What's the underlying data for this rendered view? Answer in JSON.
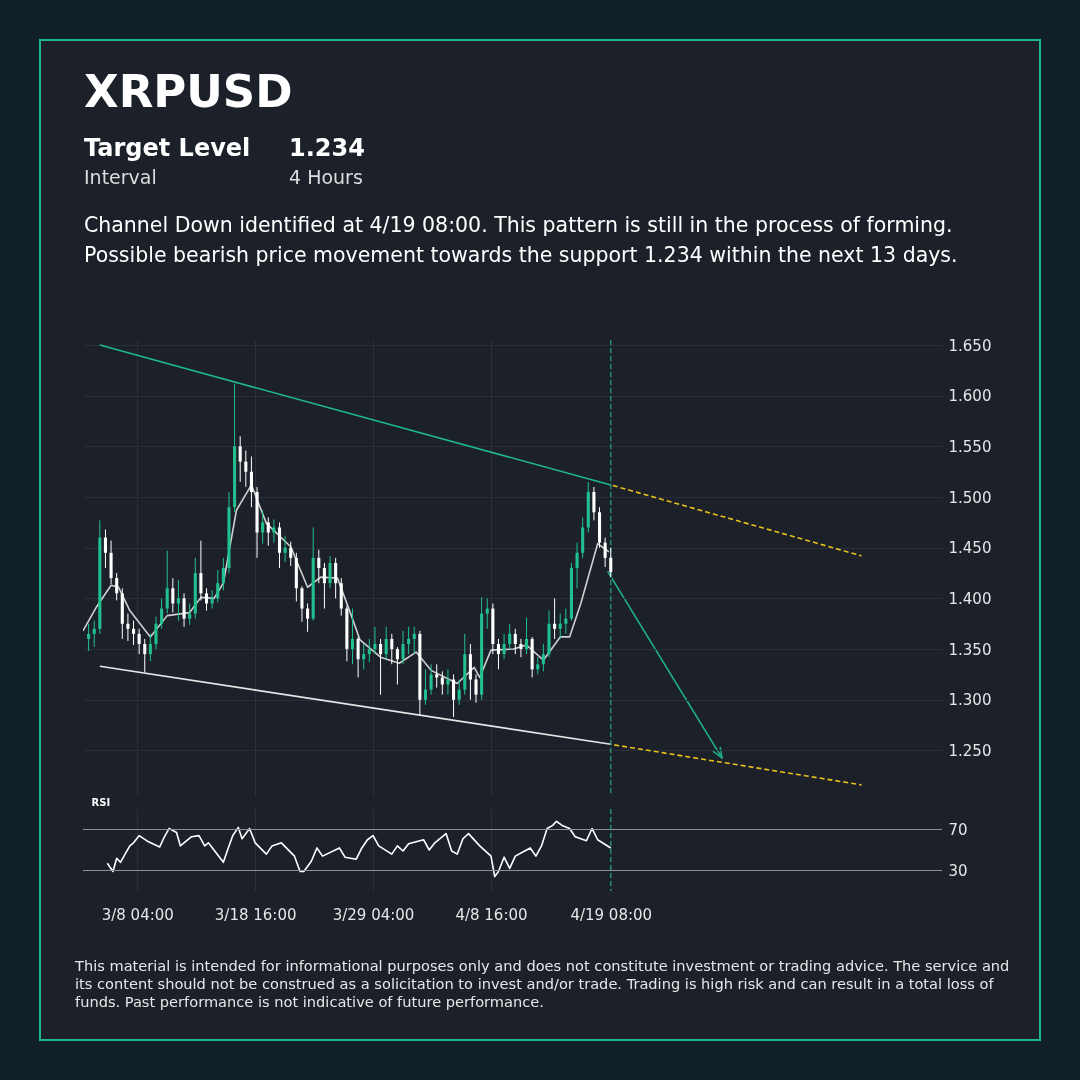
{
  "chart_data": [
    {
      "type": "candlestick",
      "title": "XRPUSD",
      "annotations": [
        "Target Level",
        "1.234",
        "Interval",
        "4 Hours",
        "Channel Down identified at 4/19 08:00. This pattern is still in the process of forming.",
        "Possible bearish price movement towards the support 1.234 within the next 13 days.",
        "This material is intended for informational purposes only and does not constitute investment or trading advice. The service and its content should not be construed as a solicitation to invest and/or trade. Trading is high risk and can result in a total loss of funds. Past performance is not indicative of future performance."
      ],
      "x": [
        "--03-03T20:00",
        "--03-04T08:00",
        "--03-04T20:00",
        "--03-05T08:00",
        "--03-05T20:00",
        "--03-06T08:00",
        "--03-06T20:00",
        "--03-07T08:00",
        "--03-07T20:00",
        "--03-08T08:00",
        "--03-08T20:00",
        "--03-09T08:00",
        "--03-09T20:00",
        "--03-10T08:00",
        "--03-10T20:00",
        "--03-11T08:00",
        "--03-11T20:00",
        "--03-12T08:00",
        "--03-12T20:00",
        "--03-13T08:00",
        "--03-13T20:00",
        "--03-14T08:00",
        "--03-14T20:00",
        "--03-15T08:00",
        "--03-15T20:00",
        "--03-16T08:00",
        "--03-16T20:00",
        "--03-17T08:00",
        "--03-17T20:00",
        "--03-18T08:00",
        "--03-18T20:00",
        "--03-19T08:00",
        "--03-19T20:00",
        "--03-20T08:00",
        "--03-20T20:00",
        "--03-21T08:00",
        "--03-21T20:00",
        "--03-22T08:00",
        "--03-22T20:00",
        "--03-23T08:00",
        "--03-23T20:00",
        "--03-24T08:00",
        "--03-24T20:00",
        "--03-25T08:00",
        "--03-25T20:00",
        "--03-26T08:00",
        "--03-26T20:00",
        "--03-27T08:00",
        "--03-27T20:00",
        "--03-28T08:00",
        "--03-28T20:00",
        "--03-29T08:00",
        "--03-29T20:00",
        "--03-30T08:00",
        "--03-30T20:00",
        "--03-31T08:00",
        "--03-31T20:00",
        "--04-01T08:00",
        "--04-01T20:00",
        "--04-02T08:00",
        "--04-02T20:00",
        "--04-03T08:00",
        "--04-03T20:00",
        "--04-04T08:00",
        "--04-04T20:00",
        "--04-05T08:00",
        "--04-05T20:00",
        "--04-06T08:00",
        "--04-06T20:00",
        "--04-07T08:00",
        "--04-07T20:00",
        "--04-08T08:00",
        "--04-08T20:00",
        "--04-09T08:00",
        "--04-09T20:00",
        "--04-10T08:00",
        "--04-10T20:00",
        "--04-11T08:00",
        "--04-11T20:00",
        "--04-12T08:00",
        "--04-12T20:00",
        "--04-13T08:00",
        "--04-13T20:00",
        "--04-14T08:00",
        "--04-14T20:00",
        "--04-15T08:00",
        "--04-15T20:00",
        "--04-16T08:00",
        "--04-16T20:00",
        "--04-17T08:00",
        "--04-17T20:00",
        "--04-18T08:00",
        "--04-18T20:00",
        "--04-19T08:00"
      ],
      "ohlc": [
        [
          1.36,
          1.375,
          1.348,
          1.365
        ],
        [
          1.365,
          1.378,
          1.352,
          1.37
        ],
        [
          1.37,
          1.477,
          1.365,
          1.46
        ],
        [
          1.46,
          1.468,
          1.43,
          1.445
        ],
        [
          1.445,
          1.457,
          1.414,
          1.42
        ],
        [
          1.42,
          1.425,
          1.398,
          1.405
        ],
        [
          1.405,
          1.41,
          1.36,
          1.375
        ],
        [
          1.375,
          1.385,
          1.358,
          1.37
        ],
        [
          1.37,
          1.378,
          1.354,
          1.365
        ],
        [
          1.365,
          1.37,
          1.345,
          1.355
        ],
        [
          1.355,
          1.36,
          1.327,
          1.345
        ],
        [
          1.345,
          1.365,
          1.338,
          1.355
        ],
        [
          1.355,
          1.382,
          1.35,
          1.375
        ],
        [
          1.375,
          1.4,
          1.37,
          1.39
        ],
        [
          1.39,
          1.447,
          1.385,
          1.41
        ],
        [
          1.41,
          1.42,
          1.386,
          1.395
        ],
        [
          1.395,
          1.418,
          1.378,
          1.4
        ],
        [
          1.4,
          1.405,
          1.372,
          1.38
        ],
        [
          1.38,
          1.395,
          1.374,
          1.385
        ],
        [
          1.385,
          1.44,
          1.38,
          1.425
        ],
        [
          1.425,
          1.457,
          1.398,
          1.405
        ],
        [
          1.405,
          1.41,
          1.388,
          1.395
        ],
        [
          1.395,
          1.408,
          1.39,
          1.4
        ],
        [
          1.4,
          1.428,
          1.396,
          1.415
        ],
        [
          1.415,
          1.44,
          1.408,
          1.43
        ],
        [
          1.43,
          1.505,
          1.425,
          1.49
        ],
        [
          1.49,
          1.612,
          1.485,
          1.55
        ],
        [
          1.55,
          1.56,
          1.515,
          1.535
        ],
        [
          1.535,
          1.546,
          1.51,
          1.525
        ],
        [
          1.525,
          1.54,
          1.49,
          1.505
        ],
        [
          1.505,
          1.51,
          1.44,
          1.465
        ],
        [
          1.465,
          1.487,
          1.454,
          1.475
        ],
        [
          1.475,
          1.48,
          1.452,
          1.465
        ],
        [
          1.465,
          1.478,
          1.455,
          1.47
        ],
        [
          1.47,
          1.475,
          1.43,
          1.445
        ],
        [
          1.445,
          1.462,
          1.436,
          1.45
        ],
        [
          1.45,
          1.456,
          1.432,
          1.44
        ],
        [
          1.44,
          1.445,
          1.397,
          1.41
        ],
        [
          1.41,
          1.412,
          1.377,
          1.39
        ],
        [
          1.39,
          1.395,
          1.367,
          1.38
        ],
        [
          1.38,
          1.47,
          1.378,
          1.44
        ],
        [
          1.44,
          1.448,
          1.415,
          1.43
        ],
        [
          1.43,
          1.435,
          1.39,
          1.415
        ],
        [
          1.415,
          1.442,
          1.41,
          1.435
        ],
        [
          1.435,
          1.44,
          1.4,
          1.415
        ],
        [
          1.415,
          1.42,
          1.383,
          1.39
        ],
        [
          1.39,
          1.393,
          1.338,
          1.35
        ],
        [
          1.35,
          1.39,
          1.335,
          1.36
        ],
        [
          1.36,
          1.362,
          1.322,
          1.34
        ],
        [
          1.34,
          1.355,
          1.33,
          1.345
        ],
        [
          1.345,
          1.36,
          1.337,
          1.35
        ],
        [
          1.35,
          1.372,
          1.345,
          1.355
        ],
        [
          1.355,
          1.36,
          1.305,
          1.345
        ],
        [
          1.345,
          1.372,
          1.34,
          1.36
        ],
        [
          1.36,
          1.365,
          1.335,
          1.35
        ],
        [
          1.35,
          1.352,
          1.315,
          1.34
        ],
        [
          1.34,
          1.368,
          1.335,
          1.355
        ],
        [
          1.355,
          1.372,
          1.345,
          1.36
        ],
        [
          1.36,
          1.372,
          1.345,
          1.365
        ],
        [
          1.365,
          1.368,
          1.285,
          1.3
        ],
        [
          1.3,
          1.33,
          1.295,
          1.31
        ],
        [
          1.31,
          1.335,
          1.305,
          1.325
        ],
        [
          1.325,
          1.335,
          1.312,
          1.322
        ],
        [
          1.322,
          1.328,
          1.305,
          1.315
        ],
        [
          1.315,
          1.33,
          1.305,
          1.32
        ],
        [
          1.32,
          1.325,
          1.283,
          1.3
        ],
        [
          1.3,
          1.32,
          1.295,
          1.31
        ],
        [
          1.31,
          1.365,
          1.305,
          1.345
        ],
        [
          1.345,
          1.355,
          1.3,
          1.32
        ],
        [
          1.32,
          1.325,
          1.297,
          1.305
        ],
        [
          1.305,
          1.401,
          1.3,
          1.385
        ],
        [
          1.385,
          1.4,
          1.37,
          1.39
        ],
        [
          1.39,
          1.395,
          1.345,
          1.355
        ],
        [
          1.355,
          1.36,
          1.33,
          1.345
        ],
        [
          1.345,
          1.365,
          1.34,
          1.355
        ],
        [
          1.355,
          1.375,
          1.35,
          1.365
        ],
        [
          1.365,
          1.37,
          1.345,
          1.355
        ],
        [
          1.355,
          1.36,
          1.342,
          1.35
        ],
        [
          1.35,
          1.381,
          1.345,
          1.36
        ],
        [
          1.36,
          1.362,
          1.322,
          1.33
        ],
        [
          1.33,
          1.342,
          1.325,
          1.335
        ],
        [
          1.335,
          1.355,
          1.328,
          1.345
        ],
        [
          1.345,
          1.388,
          1.342,
          1.375
        ],
        [
          1.375,
          1.4,
          1.36,
          1.37
        ],
        [
          1.37,
          1.385,
          1.36,
          1.375
        ],
        [
          1.375,
          1.39,
          1.365,
          1.38
        ],
        [
          1.38,
          1.435,
          1.378,
          1.43
        ],
        [
          1.43,
          1.455,
          1.41,
          1.445
        ],
        [
          1.445,
          1.48,
          1.44,
          1.47
        ],
        [
          1.47,
          1.515,
          1.465,
          1.505
        ],
        [
          1.505,
          1.51,
          1.477,
          1.485
        ],
        [
          1.485,
          1.49,
          1.45,
          1.455
        ],
        [
          1.455,
          1.46,
          1.431,
          1.44
        ],
        [
          1.44,
          1.45,
          1.421,
          1.426
        ]
      ],
      "colors": [
        "#22c08f",
        "#22c08f",
        "#22c08f",
        "#ffffff",
        "#ffffff",
        "#ffffff",
        "#ffffff",
        "#ffffff",
        "#ffffff",
        "#ffffff",
        "#ffffff",
        "#22c08f",
        "#22c08f",
        "#22c08f",
        "#22c08f",
        "#ffffff",
        "#22c08f",
        "#ffffff",
        "#22c08f",
        "#22c08f",
        "#ffffff",
        "#ffffff",
        "#22c08f",
        "#22c08f",
        "#22c08f",
        "#22c08f",
        "#22c08f",
        "#ffffff",
        "#ffffff",
        "#ffffff",
        "#ffffff",
        "#22c08f",
        "#ffffff",
        "#22c08f",
        "#ffffff",
        "#22c08f",
        "#ffffff",
        "#ffffff",
        "#ffffff",
        "#ffffff",
        "#22c08f",
        "#ffffff",
        "#ffffff",
        "#22c08f",
        "#ffffff",
        "#ffffff",
        "#ffffff",
        "#22c08f",
        "#ffffff",
        "#22c08f",
        "#22c08f",
        "#22c08f",
        "#ffffff",
        "#22c08f",
        "#ffffff",
        "#ffffff",
        "#22c08f",
        "#22c08f",
        "#22c08f",
        "#ffffff",
        "#22c08f",
        "#22c08f",
        "#ffffff",
        "#ffffff",
        "#22c08f",
        "#ffffff",
        "#22c08f",
        "#22c08f",
        "#ffffff",
        "#ffffff",
        "#22c08f",
        "#22c08f",
        "#ffffff",
        "#ffffff",
        "#22c08f",
        "#22c08f",
        "#ffffff",
        "#ffffff",
        "#22c08f",
        "#ffffff",
        "#22c08f",
        "#22c08f",
        "#22c08f",
        "#ffffff",
        "#22c08f",
        "#22c08f",
        "#22c08f",
        "#22c08f",
        "#22c08f",
        "#22c08f",
        "#ffffff",
        "#ffffff",
        "#ffffff",
        "#ffffff"
      ],
      "series": [
        {
          "type": "line",
          "color": "#cfcfcf",
          "x": [
            "--03-03T08:00",
            "--03-04T12:00",
            "--03-05T20:00",
            "--03-06T12:00",
            "--03-07T12:00",
            "--03-09T08:00",
            "--03-10T20:00",
            "--03-12T20:00",
            "--03-13T20:00",
            "--03-15T00:00",
            "--03-15T20:00",
            "--03-17T00:00",
            "--03-18T08:00",
            "--03-19T16:00",
            "--03-21T20:00",
            "--03-23T08:00",
            "--03-24T12:00",
            "--03-26T00:00",
            "--03-27T04:00",
            "--03-28T00:00",
            "--03-29T20:00",
            "--03-31T12:00",
            "--04-02T00:00",
            "--04-03T08:00",
            "--04-05T16:00",
            "--04-07T04:00",
            "--04-07T16:00",
            "--04-08T16:00",
            "--04-10T16:00",
            "--04-11T20:00",
            "--04-13T08:00",
            "--04-14T20:00",
            "--04-15T16:00",
            "--04-16T16:00",
            "--04-18T04:00",
            "--04-19T04:00"
          ],
          "values": [
            1.368,
            1.391,
            1.413,
            1.411,
            1.388,
            1.362,
            1.383,
            1.386,
            1.401,
            1.4,
            1.415,
            1.487,
            1.512,
            1.474,
            1.451,
            1.411,
            1.421,
            1.42,
            1.385,
            1.359,
            1.342,
            1.336,
            1.347,
            1.329,
            1.316,
            1.332,
            1.322,
            1.349,
            1.35,
            1.354,
            1.339,
            1.362,
            1.362,
            1.395,
            1.454,
            1.446
          ]
        },
        {
          "type": "line",
          "color": "#1fb88a",
          "x": [
            "--03-04T20:00",
            "--04-19T08:00"
          ],
          "values": [
            1.65,
            1.512
          ]
        },
        {
          "type": "line",
          "color": "#e8c21c",
          "line_style": "dashed",
          "x": [
            "--04-19T08:00",
            "--05-11T16:00"
          ],
          "values": [
            1.512,
            1.442
          ]
        },
        {
          "type": "line",
          "color": "#e6e6e6",
          "x": [
            "--03-04T20:00",
            "--04-19T08:00"
          ],
          "values": [
            1.333,
            1.256
          ]
        },
        {
          "type": "line",
          "color": "#e8c21c",
          "line_style": "dashed",
          "x": [
            "--04-19T08:00",
            "--05-11T16:00"
          ],
          "values": [
            1.256,
            1.216
          ]
        }
      ],
      "xlim": [
        "--03-03T08:00",
        "--05-18T20:00"
      ],
      "xticks": [
        {
          "value": "--03-08T04:00",
          "label": "3/8 04:00"
        },
        {
          "value": "--03-18T16:00",
          "label": "3/18 16:00"
        },
        {
          "value": "--03-29T04:00",
          "label": "3/29 04:00"
        },
        {
          "value": "--04-08T16:00",
          "label": "4/8 16:00"
        },
        {
          "value": "--04-19T08:00",
          "label": "4/19 08:00"
        }
      ],
      "ylim": [
        1.205,
        1.655
      ],
      "yticks": [
        {
          "value": 1.25,
          "label": "1.250"
        },
        {
          "value": 1.3,
          "label": "1.300"
        },
        {
          "value": 1.35,
          "label": "1.350"
        },
        {
          "value": 1.4,
          "label": "1.400"
        },
        {
          "value": 1.45,
          "label": "1.450"
        },
        {
          "value": 1.5,
          "label": "1.500"
        },
        {
          "value": 1.55,
          "label": "1.550"
        },
        {
          "value": 1.6,
          "label": "1.600"
        },
        {
          "value": 1.65,
          "label": "1.650"
        }
      ],
      "grid": true,
      "tick_labels": "y",
      "ref_lines": [
        {
          "axis": "x",
          "value": "--04-19T08:00",
          "color": "#1fb58f",
          "line_style": "dashed"
        }
      ]
    },
    {
      "type": "line",
      "title": "RSI",
      "series": [
        {
          "color": "#ffffff",
          "x": [
            "--03-05T12:00",
            "--03-06T00:00",
            "--03-06T08:00",
            "--03-06T16:00",
            "--03-07T12:00",
            "--03-07T20:00",
            "--03-08T08:00",
            "--03-09T04:00",
            "--03-10T04:00",
            "--03-10T12:00",
            "--03-11T00:00",
            "--03-11T16:00",
            "--03-12T00:00",
            "--03-13T00:00",
            "--03-13T16:00",
            "--03-14T04:00",
            "--03-14T12:00",
            "--03-15T20:00",
            "--03-16T08:00",
            "--03-16T16:00",
            "--03-17T04:00",
            "--03-17T12:00",
            "--03-18T04:00",
            "--03-18T16:00",
            "--03-19T16:00",
            "--03-20T04:00",
            "--03-21T00:00",
            "--03-22T04:00",
            "--03-22T16:00",
            "--03-23T00:00",
            "--03-23T16:00",
            "--03-24T04:00",
            "--03-24T16:00",
            "--03-26T04:00",
            "--03-26T16:00",
            "--03-27T16:00",
            "--03-28T04:00",
            "--03-28T16:00",
            "--03-29T04:00",
            "--03-29T16:00",
            "--03-30T20:00",
            "--03-31T08:00",
            "--03-31T20:00",
            "--04-01T08:00",
            "--04-02T16:00",
            "--04-03T04:00",
            "--04-03T16:00",
            "--04-04T16:00",
            "--04-05T04:00",
            "--04-05T16:00",
            "--04-06T04:00",
            "--04-06T16:00",
            "--04-07T16:00",
            "--04-08T16:00",
            "--04-09T00:00",
            "--04-09T08:00",
            "--04-09T20:00",
            "--04-10T08:00",
            "--04-10T20:00",
            "--04-11T16:00",
            "--04-12T04:00",
            "--04-12T16:00",
            "--04-13T04:00",
            "--04-13T16:00",
            "--04-14T04:00",
            "--04-14T12:00",
            "--04-15T00:00",
            "--04-15T16:00",
            "--04-16T04:00",
            "--04-17T04:00",
            "--04-17T16:00",
            "--04-18T04:00",
            "--04-19T08:00"
          ],
          "values": [
            37,
            29,
            42,
            38,
            54,
            57,
            64,
            58,
            53,
            61,
            71,
            67,
            54,
            63,
            64,
            54,
            57,
            38,
            54,
            64,
            72,
            61,
            71,
            57,
            46,
            54,
            57,
            44,
            29,
            29,
            39,
            52,
            44,
            52,
            43,
            41,
            52,
            60,
            64,
            54,
            46,
            54,
            49,
            56,
            60,
            50,
            57,
            66,
            49,
            46,
            61,
            66,
            54,
            44,
            24,
            29,
            43,
            32,
            44,
            49,
            52,
            44,
            54,
            71,
            74,
            78,
            74,
            71,
            63,
            59,
            71,
            60,
            52
          ]
        }
      ],
      "xlim": [
        "--03-03T08:00",
        "--05-18T20:00"
      ],
      "xticks": [
        {
          "value": "--03-08T04:00",
          "label": "3/8 04:00"
        },
        {
          "value": "--03-18T16:00",
          "label": "3/18 16:00"
        },
        {
          "value": "--03-29T04:00",
          "label": "3/29 04:00"
        },
        {
          "value": "--04-08T16:00",
          "label": "4/8 16:00"
        },
        {
          "value": "--04-19T08:00",
          "label": "4/19 08:00"
        }
      ],
      "ylim": [
        10,
        90
      ],
      "yticks": [
        30,
        70
      ],
      "grid": "x",
      "ref_lines": [
        {
          "axis": "y",
          "value": 70,
          "color": "#8a8f98"
        },
        {
          "axis": "y",
          "value": 30,
          "color": "#8a8f98"
        },
        {
          "axis": "x",
          "value": "--04-19T08:00",
          "color": "#1fb58f",
          "line_style": "dashed"
        }
      ]
    }
  ]
}
